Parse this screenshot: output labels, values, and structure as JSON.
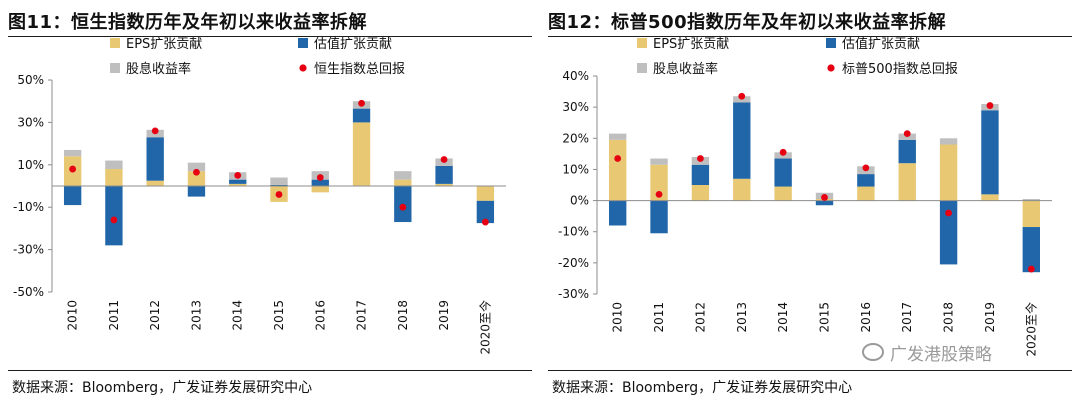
{
  "colors": {
    "eps": "#e8c872",
    "valuation": "#2066a8",
    "dividend": "#bfbfbf",
    "total": "#e60012",
    "axis": "#8c8c8c",
    "text": "#111111"
  },
  "panels": [
    {
      "title": "图11：恒生指数历年及年初以来收益率拆解",
      "source": "数据来源：Bloomberg，广发证券发展研究中心"
    },
    {
      "title": "图12：标普500指数历年及年初以来收益率拆解",
      "source": "数据来源：Bloomberg，广发证券发展研究中心"
    }
  ],
  "watermark": "广发港股策略",
  "chart_data": [
    {
      "type": "bar",
      "stacked": true,
      "categories": [
        "2010",
        "2011",
        "2012",
        "2013",
        "2014",
        "2015",
        "2016",
        "2017",
        "2018",
        "2019",
        "2020至今"
      ],
      "ylim": [
        -50,
        50
      ],
      "yticks": [
        -50,
        -30,
        -10,
        10,
        30,
        50
      ],
      "ytick_labels": [
        "-50%",
        "-30%",
        "-10%",
        "10%",
        "30%",
        "50%"
      ],
      "legend": [
        "EPS扩张贡献",
        "估值扩张贡献",
        "股息收益率",
        "恒生指数总回报"
      ],
      "series": [
        {
          "name": "EPS扩张贡献",
          "kind": "bar",
          "values": [
            14,
            8,
            2.5,
            7,
            1,
            -7.5,
            -3,
            30,
            3,
            1,
            -7
          ]
        },
        {
          "name": "估值扩张贡献",
          "kind": "bar",
          "values": [
            -9,
            -28,
            20.5,
            -5,
            2,
            0.5,
            3,
            6.5,
            -17,
            8.5,
            -10.5
          ]
        },
        {
          "name": "股息收益率",
          "kind": "bar",
          "values": [
            3,
            4,
            3.5,
            4,
            3.5,
            3.5,
            4,
            3.5,
            4,
            3.5,
            0
          ]
        },
        {
          "name": "恒生指数总回报",
          "kind": "point",
          "values": [
            8,
            -16,
            26,
            6.5,
            5,
            -4,
            4,
            39,
            -10,
            12.5,
            -17
          ]
        }
      ]
    },
    {
      "type": "bar",
      "stacked": true,
      "categories": [
        "2010",
        "2011",
        "2012",
        "2013",
        "2014",
        "2015",
        "2016",
        "2017",
        "2018",
        "2019",
        "2020至今"
      ],
      "ylim": [
        -30,
        40
      ],
      "yticks": [
        -30,
        -20,
        -10,
        0,
        10,
        20,
        30,
        40
      ],
      "ytick_labels": [
        "-30%",
        "-20%",
        "-10%",
        "0%",
        "10%",
        "20%",
        "30%",
        "40%"
      ],
      "legend": [
        "EPS扩张贡献",
        "估值扩张贡献",
        "股息收益率",
        "标普500指数总回报"
      ],
      "series": [
        {
          "name": "EPS扩张贡献",
          "kind": "bar",
          "values": [
            19.5,
            11.5,
            5,
            7,
            4.5,
            0.5,
            4.5,
            12,
            18,
            2,
            -8.5
          ]
        },
        {
          "name": "估值扩张贡献",
          "kind": "bar",
          "values": [
            -8,
            -10.5,
            6.5,
            24.5,
            9,
            -1.5,
            4,
            7.5,
            -20.5,
            27,
            -14.5
          ]
        },
        {
          "name": "股息收益率",
          "kind": "bar",
          "values": [
            2,
            2,
            2.5,
            2,
            2,
            2,
            2.5,
            2,
            2,
            2,
            0.5
          ]
        },
        {
          "name": "标普500指数总回报",
          "kind": "point",
          "values": [
            13.5,
            2,
            13.5,
            33.5,
            15.5,
            1,
            10.5,
            21.5,
            -4,
            30.5,
            -22
          ]
        }
      ]
    }
  ]
}
